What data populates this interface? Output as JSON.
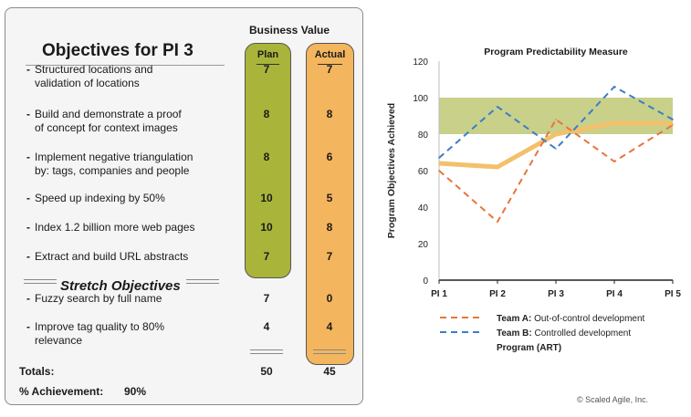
{
  "left_panel": {
    "title": "Objectives for PI 3",
    "business_value_header": "Business Value",
    "plan_header": "Plan",
    "actual_header": "Actual",
    "objectives": [
      {
        "lines": [
          "Structured locations and",
          "validation of locations"
        ],
        "plan": "7",
        "actual": "7"
      },
      {
        "lines": [
          "Build and demonstrate a proof",
          "of concept for context images"
        ],
        "plan": "8",
        "actual": "8"
      },
      {
        "lines": [
          "Implement negative triangulation",
          "by: tags, companies and people"
        ],
        "plan": "8",
        "actual": "6"
      },
      {
        "lines": [
          "Speed up indexing by 50%"
        ],
        "plan": "10",
        "actual": "5"
      },
      {
        "lines": [
          "Index 1.2 billion more web pages"
        ],
        "plan": "10",
        "actual": "8"
      },
      {
        "lines": [
          "Extract and build URL abstracts"
        ],
        "plan": "7",
        "actual": "7"
      }
    ],
    "stretch_title": "Stretch Objectives",
    "stretch_objectives": [
      {
        "lines": [
          "Fuzzy search by full name"
        ],
        "plan": "7",
        "actual": "0"
      },
      {
        "lines": [
          "Improve tag quality to 80%",
          "relevance"
        ],
        "plan": "4",
        "actual": "4"
      }
    ],
    "totals_label": "Totals:",
    "totals_plan": "50",
    "totals_actual": "45",
    "achievement_label": "% Achievement:",
    "achievement_value": "90%"
  },
  "chart_data": {
    "type": "line",
    "title": "Program Predictability Measure",
    "ylabel": "Program Objectives Achieved",
    "xlabel": "",
    "categories": [
      "PI 1",
      "PI 2",
      "PI 3",
      "PI 4",
      "PI 5"
    ],
    "ylim": [
      0,
      120
    ],
    "yticks": [
      "0",
      "20",
      "40",
      "60",
      "80",
      "100",
      "120"
    ],
    "band": [
      80,
      100
    ],
    "series": [
      {
        "name_bold": "Team A:",
        "name_rest": " Out-of-control development",
        "values": [
          60,
          32,
          88,
          65,
          85
        ],
        "color": "#e8743b",
        "style": "dashed"
      },
      {
        "name_bold": "Team B:",
        "name_rest": " Controlled development",
        "values": [
          67,
          95,
          72,
          106,
          88
        ],
        "color": "#3a7dc9",
        "style": "dashed"
      },
      {
        "name_bold": "Program (ART)",
        "name_rest": "",
        "values": [
          64,
          62,
          80,
          86,
          86
        ],
        "color": "#f3c06b",
        "style": "solid"
      }
    ],
    "band_color": "#c8d08a",
    "legend_position": "bottom"
  },
  "copyright": "© Scaled Agile, Inc."
}
